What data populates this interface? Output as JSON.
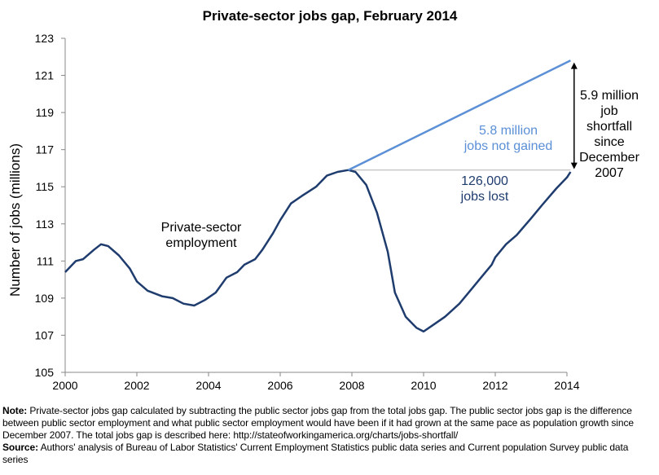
{
  "chart_data": {
    "type": "line",
    "title": "Private-sector jobs gap, February 2014",
    "xlabel": "",
    "ylabel": "Number of jobs (millions)",
    "xlim": [
      2000,
      2014
    ],
    "ylim": [
      105,
      123
    ],
    "x_ticks": [
      "2000",
      "2002",
      "2004",
      "2006",
      "2008",
      "2010",
      "2012",
      "2014"
    ],
    "y_ticks": [
      "105",
      "107",
      "109",
      "111",
      "113",
      "115",
      "117",
      "119",
      "121",
      "123"
    ],
    "grid": false,
    "series": [
      {
        "name": "Private-sector employment",
        "color": "#1f3c6e",
        "points": [
          [
            2000.0,
            110.4
          ],
          [
            2000.3,
            111.0
          ],
          [
            2000.5,
            111.1
          ],
          [
            2000.8,
            111.6
          ],
          [
            2001.0,
            111.9
          ],
          [
            2001.2,
            111.8
          ],
          [
            2001.5,
            111.3
          ],
          [
            2001.8,
            110.6
          ],
          [
            2002.0,
            109.9
          ],
          [
            2002.3,
            109.4
          ],
          [
            2002.7,
            109.1
          ],
          [
            2003.0,
            109.0
          ],
          [
            2003.3,
            108.7
          ],
          [
            2003.6,
            108.6
          ],
          [
            2003.9,
            108.9
          ],
          [
            2004.2,
            109.3
          ],
          [
            2004.5,
            110.1
          ],
          [
            2004.8,
            110.4
          ],
          [
            2005.0,
            110.8
          ],
          [
            2005.3,
            111.1
          ],
          [
            2005.5,
            111.6
          ],
          [
            2005.8,
            112.5
          ],
          [
            2006.0,
            113.2
          ],
          [
            2006.3,
            114.1
          ],
          [
            2006.6,
            114.5
          ],
          [
            2007.0,
            115.0
          ],
          [
            2007.3,
            115.6
          ],
          [
            2007.6,
            115.8
          ],
          [
            2007.9,
            115.9
          ],
          [
            2008.1,
            115.8
          ],
          [
            2008.4,
            115.1
          ],
          [
            2008.7,
            113.6
          ],
          [
            2009.0,
            111.5
          ],
          [
            2009.2,
            109.3
          ],
          [
            2009.5,
            108.0
          ],
          [
            2009.8,
            107.4
          ],
          [
            2010.0,
            107.2
          ],
          [
            2010.3,
            107.6
          ],
          [
            2010.6,
            108.0
          ],
          [
            2011.0,
            108.7
          ],
          [
            2011.3,
            109.4
          ],
          [
            2011.6,
            110.1
          ],
          [
            2011.9,
            110.8
          ],
          [
            2012.0,
            111.2
          ],
          [
            2012.3,
            111.9
          ],
          [
            2012.6,
            112.4
          ],
          [
            2013.0,
            113.3
          ],
          [
            2013.3,
            114.0
          ],
          [
            2013.7,
            114.9
          ],
          [
            2014.0,
            115.5
          ],
          [
            2014.1,
            115.8
          ]
        ]
      },
      {
        "color": "#5b8fd6",
        "points": [
          [
            2007.9,
            115.9
          ],
          [
            2014.1,
            121.8
          ]
        ]
      }
    ],
    "reference_line": {
      "y": 115.9,
      "x": [
        2007.9,
        2014.1
      ],
      "color": "#b0b0b0"
    },
    "annotations": {
      "employment_label": [
        "Private-sector",
        "employment"
      ],
      "not_gained": [
        "5.8 million",
        "jobs not gained"
      ],
      "lost": [
        "126,000",
        "jobs lost"
      ],
      "shortfall": [
        "5.9 million",
        "job",
        "shortfall",
        "since",
        "December",
        "2007"
      ]
    }
  },
  "note": {
    "note_label": "Note:",
    "note_text": "Private-sector jobs gap calculated by subtracting the public sector jobs gap from the total jobs gap. The public sector jobs gap is the difference between public sector employment and what public sector employment would have been if it had grown at the same pace as population growth since December 2007. The total jobs gap is described here: http://stateofworkingamerica.org/charts/jobs-shortfall/",
    "source_label": "Source:",
    "source_text": "Authors' analysis of Bureau of Labor Statistics' Current Employment Statistics public data series and Current population Survey public data series"
  }
}
